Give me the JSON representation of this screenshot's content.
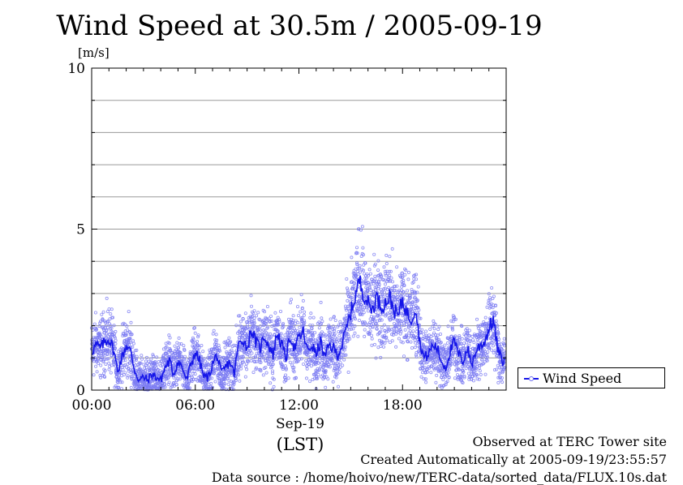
{
  "header": {
    "title": "Wind Speed at 30.5m / 2005-09-19",
    "unit": "[m/s]"
  },
  "axis": {
    "date_label": "Sep-19",
    "timezone_label": "(LST)"
  },
  "legend": {
    "label": "Wind Speed"
  },
  "footer": {
    "line1": "Observed at TERC Tower site",
    "line2": "Created Automatically at 2005-09-19/23:55:57",
    "line3": "Data source : /home/hoivo/new/TERC-data/sorted_data/FLUX.10s.dat"
  },
  "colors": {
    "line": "#1515e8",
    "points": "#7b7bf2",
    "grid": "#9a9a9a"
  },
  "chart_data": {
    "type": "line",
    "title": "Wind Speed at 30.5m / 2005-09-19",
    "ylabel": "[m/s]",
    "xlabel": "",
    "x_unit": "hour",
    "xlim": [
      0,
      24
    ],
    "ylim": [
      0,
      10
    ],
    "x_tick_labels": [
      "00:00",
      "06:00",
      "12:00",
      "18:00"
    ],
    "x_ticks": [
      0,
      6,
      12,
      18
    ],
    "y_tick_labels": [
      "0",
      "5",
      "10"
    ],
    "y_ticks": [
      0,
      5,
      10
    ],
    "grid_y_step": 1,
    "legend_position": "right",
    "series": [
      {
        "name": "Wind Speed",
        "style": "line with scattered 10-second samples",
        "x": [
          0,
          0.25,
          0.5,
          0.75,
          1.0,
          1.25,
          1.5,
          1.75,
          2.0,
          2.25,
          2.5,
          2.75,
          3.0,
          3.25,
          3.5,
          3.75,
          4.0,
          4.25,
          4.5,
          4.75,
          5.0,
          5.25,
          5.5,
          5.75,
          6.0,
          6.25,
          6.5,
          6.75,
          7.0,
          7.25,
          7.5,
          7.75,
          8.0,
          8.25,
          8.5,
          8.75,
          9.0,
          9.25,
          9.5,
          9.75,
          10.0,
          10.25,
          10.5,
          10.75,
          11.0,
          11.25,
          11.5,
          11.75,
          12.0,
          12.25,
          12.5,
          12.75,
          13.0,
          13.25,
          13.5,
          13.75,
          14.0,
          14.25,
          14.5,
          14.75,
          15.0,
          15.25,
          15.5,
          15.75,
          16.0,
          16.25,
          16.5,
          16.75,
          17.0,
          17.25,
          17.5,
          17.75,
          18.0,
          18.25,
          18.5,
          18.75,
          19.0,
          19.25,
          19.5,
          19.75,
          20.0,
          20.25,
          20.5,
          20.75,
          21.0,
          21.25,
          21.5,
          21.75,
          22.0,
          22.25,
          22.5,
          22.75,
          23.0,
          23.25,
          23.5,
          23.75
        ],
        "values": [
          1.2,
          1.4,
          1.3,
          1.5,
          1.6,
          1.3,
          0.6,
          1.0,
          1.4,
          1.2,
          0.6,
          0.3,
          0.4,
          0.3,
          0.5,
          0.4,
          0.3,
          0.7,
          0.9,
          0.5,
          0.9,
          0.7,
          0.3,
          0.8,
          1.2,
          0.9,
          0.4,
          0.4,
          0.8,
          1.1,
          0.5,
          0.7,
          0.9,
          0.5,
          1.4,
          1.6,
          1.3,
          1.9,
          1.5,
          1.3,
          1.7,
          1.4,
          1.1,
          1.8,
          1.4,
          1.0,
          1.7,
          1.3,
          1.6,
          1.8,
          1.2,
          1.4,
          1.1,
          1.5,
          1.0,
          1.4,
          1.3,
          1.1,
          1.4,
          1.9,
          2.4,
          2.9,
          3.4,
          3.0,
          2.7,
          2.5,
          2.9,
          2.6,
          2.7,
          2.9,
          2.5,
          2.3,
          2.8,
          2.4,
          2.2,
          2.6,
          1.5,
          1.0,
          1.1,
          1.4,
          1.3,
          0.9,
          0.7,
          1.2,
          1.5,
          1.1,
          0.9,
          1.3,
          0.8,
          1.2,
          1.4,
          1.5,
          1.9,
          2.2,
          1.3,
          0.9
        ]
      }
    ]
  }
}
